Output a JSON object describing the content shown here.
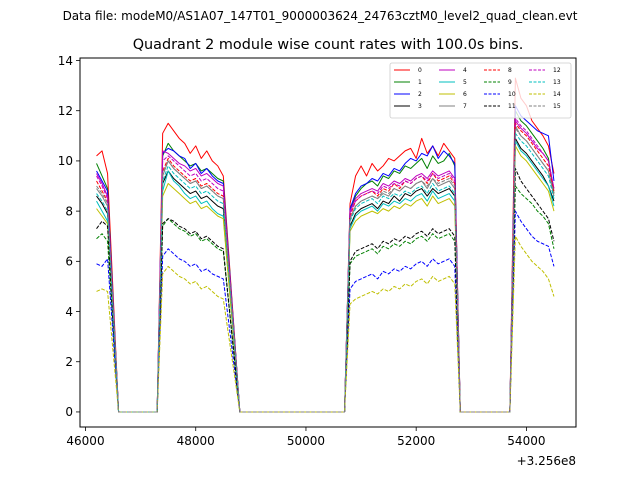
{
  "chart_data": {
    "type": "line",
    "suptitle": "Data file: modeM0/AS1A07_147T01_9000003624_24763cztM0_level2_quad_clean.evt",
    "title": "Quadrant 2 module wise count rates with 100.0s bins.",
    "xlabel": "",
    "ylabel": "",
    "x_offset_label": "+3.256e8",
    "xlim": [
      45900,
      54900
    ],
    "ylim": [
      -0.6,
      14.1
    ],
    "xticks": [
      46000,
      48000,
      50000,
      52000,
      54000
    ],
    "xtick_labels": [
      "46000",
      "48000",
      "50000",
      "52000",
      "54000"
    ],
    "yticks": [
      0,
      2,
      4,
      6,
      8,
      10,
      12,
      14
    ],
    "ytick_labels": [
      "0",
      "2",
      "4",
      "6",
      "8",
      "10",
      "12",
      "14"
    ],
    "segments": [
      {
        "x_start": 46200,
        "n": 3
      },
      {
        "x_start": 47400,
        "n": 12
      },
      {
        "x_start": 50800,
        "n": 20
      },
      {
        "x_start": 53800,
        "n": 8
      }
    ],
    "bin_width": 100,
    "zero_edges": [
      [
        46600,
        47300
      ],
      [
        48800,
        50700
      ],
      [
        52800,
        53700
      ]
    ],
    "legend": {
      "location": "upper-right",
      "columns": 4
    },
    "series": [
      {
        "name": "0",
        "color": "#ff0000",
        "dash": "solid",
        "values": [
          10.2,
          10.4,
          9.5,
          11.1,
          11.5,
          11.2,
          10.9,
          10.7,
          10.3,
          10.6,
          10.1,
          10.4,
          10.0,
          9.8,
          9.4,
          8.3,
          9.4,
          9.8,
          9.4,
          9.9,
          9.6,
          9.8,
          10.1,
          10.0,
          10.2,
          10.4,
          10.5,
          10.1,
          10.9,
          10.3,
          10.6,
          10.2,
          10.7,
          10.4,
          10.1,
          13.3,
          12.5,
          12.2,
          11.6,
          11.3,
          11.0,
          10.6,
          9.5
        ]
      },
      {
        "name": "1",
        "color": "#008000",
        "dash": "solid",
        "values": [
          9.9,
          9.4,
          8.9,
          10.2,
          10.7,
          10.4,
          10.2,
          10.0,
          9.8,
          9.9,
          9.6,
          9.7,
          9.5,
          9.3,
          9.2,
          8.0,
          8.6,
          8.9,
          9.1,
          9.2,
          9.0,
          9.4,
          9.3,
          9.6,
          9.5,
          9.8,
          9.7,
          9.9,
          10.1,
          9.7,
          10.2,
          9.9,
          10.0,
          10.3,
          9.8,
          12.0,
          11.6,
          11.4,
          11.1,
          10.8,
          10.5,
          10.1,
          8.7
        ]
      },
      {
        "name": "2",
        "color": "#0000ff",
        "dash": "solid",
        "values": [
          9.6,
          9.2,
          8.8,
          10.3,
          10.5,
          10.4,
          10.2,
          10.1,
          9.7,
          9.9,
          9.5,
          9.7,
          9.4,
          9.2,
          9.1,
          8.1,
          8.7,
          9.0,
          9.1,
          9.3,
          9.2,
          9.5,
          9.4,
          9.7,
          9.6,
          9.9,
          10.1,
          10.0,
          10.3,
          10.2,
          10.6,
          10.1,
          10.4,
          10.2,
          9.9,
          12.2,
          11.8,
          11.6,
          11.4,
          11.2,
          11.1,
          11.0,
          9.2
        ]
      },
      {
        "name": "3",
        "color": "#000000",
        "dash": "solid",
        "values": [
          8.6,
          8.3,
          7.9,
          9.1,
          9.6,
          9.3,
          9.1,
          8.9,
          8.7,
          8.8,
          8.5,
          8.6,
          8.4,
          8.2,
          8.1,
          7.4,
          7.9,
          8.1,
          8.2,
          8.3,
          8.1,
          8.4,
          8.3,
          8.6,
          8.4,
          8.7,
          8.6,
          8.8,
          8.9,
          8.6,
          8.9,
          8.7,
          8.8,
          8.9,
          8.6,
          10.9,
          10.5,
          10.3,
          10.0,
          9.7,
          9.4,
          9.0,
          8.4
        ]
      },
      {
        "name": "4",
        "color": "#bf00bf",
        "dash": "solid",
        "values": [
          9.5,
          9.1,
          8.6,
          10.4,
          10.3,
          10.1,
          9.9,
          9.8,
          9.6,
          9.7,
          9.4,
          9.5,
          9.3,
          9.1,
          9.0,
          8.0,
          8.5,
          8.7,
          8.8,
          8.9,
          8.8,
          9.1,
          9.0,
          9.2,
          9.1,
          9.3,
          9.2,
          9.4,
          9.5,
          9.3,
          9.6,
          9.4,
          9.5,
          9.6,
          9.3,
          11.6,
          11.3,
          11.1,
          10.8,
          10.5,
          10.3,
          10.0,
          8.9
        ]
      },
      {
        "name": "5",
        "color": "#00bfbf",
        "dash": "solid",
        "values": [
          8.4,
          8.0,
          7.6,
          8.8,
          9.6,
          9.2,
          9.0,
          8.7,
          8.5,
          8.6,
          8.3,
          8.4,
          8.1,
          7.9,
          7.8,
          7.3,
          7.8,
          8.0,
          8.1,
          8.2,
          8.0,
          8.3,
          8.2,
          8.4,
          8.3,
          8.5,
          8.4,
          8.6,
          8.7,
          8.4,
          8.8,
          8.5,
          8.6,
          8.7,
          8.4,
          10.8,
          10.4,
          10.2,
          9.9,
          9.6,
          9.3,
          9.0,
          8.2
        ]
      },
      {
        "name": "6",
        "color": "#bfbf00",
        "dash": "solid",
        "values": [
          8.1,
          7.8,
          7.5,
          8.6,
          9.1,
          8.9,
          8.7,
          8.5,
          8.3,
          8.4,
          8.1,
          8.2,
          8.0,
          7.8,
          7.7,
          7.2,
          7.6,
          7.8,
          7.9,
          8.0,
          7.9,
          8.1,
          8.0,
          8.2,
          8.1,
          8.3,
          8.2,
          8.4,
          8.5,
          8.2,
          8.6,
          8.3,
          8.4,
          8.5,
          8.2,
          10.6,
          10.2,
          10.0,
          9.7,
          9.4,
          9.1,
          8.8,
          8.0
        ]
      },
      {
        "name": "7",
        "color": "#808080",
        "dash": "solid",
        "values": [
          8.9,
          8.6,
          8.2,
          9.4,
          10.0,
          9.7,
          9.5,
          9.3,
          9.1,
          9.2,
          8.9,
          9.0,
          8.8,
          8.6,
          8.5,
          7.7,
          8.2,
          8.4,
          8.5,
          8.6,
          8.5,
          8.7,
          8.6,
          8.9,
          8.8,
          9.0,
          8.9,
          9.1,
          9.2,
          8.9,
          9.3,
          9.0,
          9.1,
          9.2,
          8.9,
          11.4,
          11.0,
          10.8,
          10.5,
          10.2,
          9.9,
          9.6,
          8.6
        ]
      },
      {
        "name": "8",
        "color": "#ff0000",
        "dash": "dashed",
        "values": [
          9.2,
          8.8,
          8.4,
          9.6,
          10.1,
          9.8,
          9.6,
          9.4,
          9.2,
          9.3,
          9.0,
          9.1,
          8.9,
          8.7,
          8.6,
          7.8,
          8.4,
          8.6,
          8.7,
          8.8,
          8.6,
          8.9,
          8.8,
          9.1,
          8.9,
          9.2,
          9.1,
          9.3,
          9.4,
          9.1,
          9.5,
          9.2,
          9.3,
          9.4,
          9.1,
          11.5,
          11.2,
          11.0,
          10.7,
          10.4,
          10.1,
          9.8,
          8.8
        ]
      },
      {
        "name": "9",
        "color": "#008000",
        "dash": "dashed",
        "values": [
          6.9,
          7.1,
          6.8,
          7.4,
          7.7,
          7.5,
          7.3,
          7.2,
          7.0,
          7.1,
          6.8,
          6.9,
          6.7,
          6.5,
          6.4,
          5.9,
          6.2,
          6.3,
          6.4,
          6.5,
          6.3,
          6.6,
          6.5,
          6.7,
          6.6,
          6.8,
          6.7,
          6.9,
          7.0,
          6.8,
          7.1,
          6.9,
          7.0,
          7.1,
          6.8,
          9.0,
          8.7,
          8.5,
          8.3,
          8.0,
          7.8,
          7.5,
          6.5
        ]
      },
      {
        "name": "10",
        "color": "#0000ff",
        "dash": "dashed",
        "values": [
          5.9,
          5.8,
          6.1,
          6.2,
          6.5,
          6.3,
          6.1,
          6.0,
          5.8,
          5.9,
          5.6,
          5.7,
          5.5,
          5.4,
          5.3,
          4.9,
          5.2,
          5.3,
          5.4,
          5.5,
          5.3,
          5.6,
          5.5,
          5.7,
          5.6,
          5.8,
          5.7,
          5.9,
          6.0,
          5.8,
          6.1,
          5.9,
          6.0,
          6.1,
          5.8,
          8.0,
          7.6,
          7.3,
          7.0,
          6.8,
          6.7,
          6.6,
          5.8
        ]
      },
      {
        "name": "11",
        "color": "#000000",
        "dash": "dashed",
        "values": [
          7.3,
          7.6,
          7.4,
          7.5,
          7.7,
          7.6,
          7.4,
          7.3,
          7.1,
          7.2,
          6.9,
          7.0,
          6.8,
          6.6,
          6.5,
          6.0,
          6.4,
          6.5,
          6.6,
          6.7,
          6.5,
          6.8,
          6.7,
          6.9,
          6.8,
          7.0,
          6.9,
          7.1,
          7.2,
          7.0,
          7.3,
          7.1,
          7.2,
          7.3,
          7.0,
          9.7,
          9.2,
          8.9,
          8.6,
          8.3,
          8.0,
          7.7,
          6.8
        ]
      },
      {
        "name": "12",
        "color": "#bf00bf",
        "dash": "dashed",
        "values": [
          9.4,
          9.0,
          8.5,
          10.0,
          10.2,
          10.0,
          9.8,
          9.6,
          9.4,
          9.5,
          9.2,
          9.3,
          9.1,
          8.9,
          8.8,
          7.9,
          8.4,
          8.6,
          8.7,
          8.8,
          8.7,
          9.0,
          8.9,
          9.1,
          9.0,
          9.2,
          9.1,
          9.3,
          9.4,
          9.2,
          9.5,
          9.3,
          9.4,
          9.5,
          9.2,
          11.7,
          11.4,
          11.2,
          10.9,
          10.6,
          10.3,
          10.0,
          8.9
        ]
      },
      {
        "name": "13",
        "color": "#00bfbf",
        "dash": "dashed",
        "values": [
          8.7,
          8.4,
          8.0,
          9.2,
          9.8,
          9.5,
          9.3,
          9.1,
          8.9,
          9.0,
          8.7,
          8.8,
          8.6,
          8.4,
          8.3,
          7.6,
          8.1,
          8.3,
          8.4,
          8.5,
          8.3,
          8.6,
          8.5,
          8.7,
          8.6,
          8.8,
          8.7,
          8.9,
          9.0,
          8.7,
          9.1,
          8.8,
          8.9,
          9.0,
          8.7,
          11.1,
          10.8,
          10.6,
          10.3,
          10.0,
          9.7,
          9.4,
          8.5
        ]
      },
      {
        "name": "14",
        "color": "#bfbf00",
        "dash": "dashed",
        "values": [
          4.8,
          4.9,
          4.8,
          5.5,
          5.8,
          5.6,
          5.4,
          5.3,
          5.1,
          5.2,
          4.9,
          5.0,
          4.8,
          4.6,
          4.5,
          4.3,
          4.5,
          4.6,
          4.7,
          4.8,
          4.7,
          4.9,
          4.8,
          5.0,
          4.9,
          5.1,
          5.0,
          5.2,
          5.3,
          5.1,
          5.4,
          5.2,
          5.3,
          5.4,
          5.1,
          7.0,
          6.6,
          6.3,
          6.0,
          5.8,
          5.6,
          5.3,
          4.6
        ]
      },
      {
        "name": "15",
        "color": "#808080",
        "dash": "dashed",
        "values": [
          9.0,
          8.7,
          8.3,
          9.5,
          10.0,
          9.7,
          9.5,
          9.3,
          9.1,
          9.2,
          8.9,
          9.0,
          8.8,
          8.6,
          8.5,
          7.7,
          8.2,
          8.4,
          8.5,
          8.6,
          8.5,
          8.8,
          8.7,
          8.9,
          8.8,
          9.0,
          8.9,
          9.1,
          9.2,
          9.0,
          9.3,
          9.1,
          9.2,
          9.3,
          9.0,
          11.3,
          11.0,
          10.8,
          10.5,
          10.2,
          9.9,
          9.6,
          8.7
        ]
      }
    ]
  }
}
